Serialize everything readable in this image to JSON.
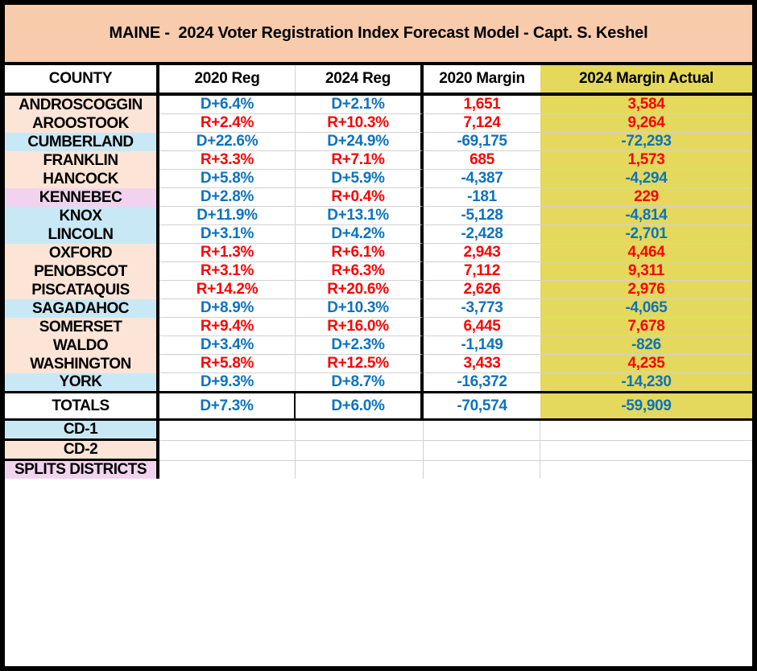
{
  "title": "MAINE -  2024 Voter Registration Index Forecast Model - Capt. S. Keshel",
  "columns": [
    "COUNTY",
    "2020 Reg",
    "2024 Reg",
    "2020 Margin",
    "2024 Margin Actual"
  ],
  "colors": {
    "title_bg": "#F8CBAD",
    "county_peach": "#FCE4D6",
    "county_blue": "#C9E8F5",
    "county_lavender": "#F1D3EF",
    "highlight_yellow": "#E4D95C",
    "dem_text": "#0E72BE",
    "rep_text": "#F90404",
    "gridline": "#D1D1D1"
  },
  "rows": [
    {
      "county": "ANDROSCOGGIN",
      "bg": "peach",
      "values": [
        {
          "t": "D+6.4%",
          "p": "D"
        },
        {
          "t": "D+2.1%",
          "p": "D"
        },
        {
          "t": "1,651",
          "p": "R"
        },
        {
          "t": "3,584",
          "p": "R"
        }
      ]
    },
    {
      "county": "AROOSTOOK",
      "bg": "peach",
      "values": [
        {
          "t": "R+2.4%",
          "p": "R"
        },
        {
          "t": "R+10.3%",
          "p": "R"
        },
        {
          "t": "7,124",
          "p": "R"
        },
        {
          "t": "9,264",
          "p": "R"
        }
      ]
    },
    {
      "county": "CUMBERLAND",
      "bg": "blue",
      "values": [
        {
          "t": "D+22.6%",
          "p": "D"
        },
        {
          "t": "D+24.9%",
          "p": "D"
        },
        {
          "t": "-69,175",
          "p": "D"
        },
        {
          "t": "-72,293",
          "p": "D"
        }
      ]
    },
    {
      "county": "FRANKLIN",
      "bg": "peach",
      "values": [
        {
          "t": "R+3.3%",
          "p": "R"
        },
        {
          "t": "R+7.1%",
          "p": "R"
        },
        {
          "t": "685",
          "p": "R"
        },
        {
          "t": "1,573",
          "p": "R"
        }
      ]
    },
    {
      "county": "HANCOCK",
      "bg": "peach",
      "values": [
        {
          "t": "D+5.8%",
          "p": "D"
        },
        {
          "t": "D+5.9%",
          "p": "D"
        },
        {
          "t": "-4,387",
          "p": "D"
        },
        {
          "t": "-4,294",
          "p": "D"
        }
      ]
    },
    {
      "county": "KENNEBEC",
      "bg": "lavender",
      "values": [
        {
          "t": "D+2.8%",
          "p": "D"
        },
        {
          "t": "R+0.4%",
          "p": "R"
        },
        {
          "t": "-181",
          "p": "D"
        },
        {
          "t": "229",
          "p": "R"
        }
      ]
    },
    {
      "county": "KNOX",
      "bg": "blue",
      "values": [
        {
          "t": "D+11.9%",
          "p": "D"
        },
        {
          "t": "D+13.1%",
          "p": "D"
        },
        {
          "t": "-5,128",
          "p": "D"
        },
        {
          "t": "-4,814",
          "p": "D"
        }
      ]
    },
    {
      "county": "LINCOLN",
      "bg": "blue",
      "values": [
        {
          "t": "D+3.1%",
          "p": "D"
        },
        {
          "t": "D+4.2%",
          "p": "D"
        },
        {
          "t": "-2,428",
          "p": "D"
        },
        {
          "t": "-2,701",
          "p": "D"
        }
      ]
    },
    {
      "county": "OXFORD",
      "bg": "peach",
      "values": [
        {
          "t": "R+1.3%",
          "p": "R"
        },
        {
          "t": "R+6.1%",
          "p": "R"
        },
        {
          "t": "2,943",
          "p": "R"
        },
        {
          "t": "4,464",
          "p": "R"
        }
      ]
    },
    {
      "county": "PENOBSCOT",
      "bg": "peach",
      "values": [
        {
          "t": "R+3.1%",
          "p": "R"
        },
        {
          "t": "R+6.3%",
          "p": "R"
        },
        {
          "t": "7,112",
          "p": "R"
        },
        {
          "t": "9,311",
          "p": "R"
        }
      ]
    },
    {
      "county": "PISCATAQUIS",
      "bg": "peach",
      "values": [
        {
          "t": "R+14.2%",
          "p": "R"
        },
        {
          "t": "R+20.6%",
          "p": "R"
        },
        {
          "t": "2,626",
          "p": "R"
        },
        {
          "t": "2,976",
          "p": "R"
        }
      ]
    },
    {
      "county": "SAGADAHOC",
      "bg": "blue",
      "values": [
        {
          "t": "D+8.9%",
          "p": "D"
        },
        {
          "t": "D+10.3%",
          "p": "D"
        },
        {
          "t": "-3,773",
          "p": "D"
        },
        {
          "t": "-4,065",
          "p": "D"
        }
      ]
    },
    {
      "county": "SOMERSET",
      "bg": "peach",
      "values": [
        {
          "t": "R+9.4%",
          "p": "R"
        },
        {
          "t": "R+16.0%",
          "p": "R"
        },
        {
          "t": "6,445",
          "p": "R"
        },
        {
          "t": "7,678",
          "p": "R"
        }
      ]
    },
    {
      "county": "WALDO",
      "bg": "peach",
      "values": [
        {
          "t": "D+3.4%",
          "p": "D"
        },
        {
          "t": "D+2.3%",
          "p": "D"
        },
        {
          "t": "-1,149",
          "p": "D"
        },
        {
          "t": "-826",
          "p": "D"
        }
      ]
    },
    {
      "county": "WASHINGTON",
      "bg": "peach",
      "values": [
        {
          "t": "R+5.8%",
          "p": "R"
        },
        {
          "t": "R+12.5%",
          "p": "R"
        },
        {
          "t": "3,433",
          "p": "R"
        },
        {
          "t": "4,235",
          "p": "R"
        }
      ]
    },
    {
      "county": "YORK",
      "bg": "blue",
      "values": [
        {
          "t": "D+9.3%",
          "p": "D"
        },
        {
          "t": "D+8.7%",
          "p": "D"
        },
        {
          "t": "-16,372",
          "p": "D"
        },
        {
          "t": "-14,230",
          "p": "D"
        }
      ]
    }
  ],
  "totals_row": {
    "county": "TOTALS",
    "bg": "white",
    "values": [
      {
        "t": "D+7.3%",
        "p": "D"
      },
      {
        "t": "D+6.0%",
        "p": "D"
      },
      {
        "t": "-70,574",
        "p": "D"
      },
      {
        "t": "-59,909",
        "p": "D"
      }
    ]
  },
  "footer_rows": [
    {
      "county": "CD-1",
      "bg": "blue"
    },
    {
      "county": "CD-2",
      "bg": "peach"
    },
    {
      "county": "SPLITS DISTRICTS",
      "bg": "lavender"
    }
  ],
  "chart_data": {
    "type": "table",
    "title": "MAINE -  2024 Voter Registration Index Forecast Model - Capt. S. Keshel",
    "columns": [
      "COUNTY",
      "2020 Reg",
      "2024 Reg",
      "2020 Margin",
      "2024 Margin Actual"
    ],
    "rows": [
      [
        "ANDROSCOGGIN",
        "D+6.4%",
        "D+2.1%",
        "1,651",
        "3,584"
      ],
      [
        "AROOSTOOK",
        "R+2.4%",
        "R+10.3%",
        "7,124",
        "9,264"
      ],
      [
        "CUMBERLAND",
        "D+22.6%",
        "D+24.9%",
        "-69,175",
        "-72,293"
      ],
      [
        "FRANKLIN",
        "R+3.3%",
        "R+7.1%",
        "685",
        "1,573"
      ],
      [
        "HANCOCK",
        "D+5.8%",
        "D+5.9%",
        "-4,387",
        "-4,294"
      ],
      [
        "KENNEBEC",
        "D+2.8%",
        "R+0.4%",
        "-181",
        "229"
      ],
      [
        "KNOX",
        "D+11.9%",
        "D+13.1%",
        "-5,128",
        "-4,814"
      ],
      [
        "LINCOLN",
        "D+3.1%",
        "D+4.2%",
        "-2,428",
        "-2,701"
      ],
      [
        "OXFORD",
        "R+1.3%",
        "R+6.1%",
        "2,943",
        "4,464"
      ],
      [
        "PENOBSCOT",
        "R+3.1%",
        "R+6.3%",
        "7,112",
        "9,311"
      ],
      [
        "PISCATAQUIS",
        "R+14.2%",
        "R+20.6%",
        "2,626",
        "2,976"
      ],
      [
        "SAGADAHOC",
        "D+8.9%",
        "D+10.3%",
        "-3,773",
        "-4,065"
      ],
      [
        "SOMERSET",
        "R+9.4%",
        "R+16.0%",
        "6,445",
        "7,678"
      ],
      [
        "WALDO",
        "D+3.4%",
        "D+2.3%",
        "-1,149",
        "-826"
      ],
      [
        "WASHINGTON",
        "R+5.8%",
        "R+12.5%",
        "3,433",
        "4,235"
      ],
      [
        "YORK",
        "D+9.3%",
        "D+8.7%",
        "-16,372",
        "-14,230"
      ],
      [
        "TOTALS",
        "D+7.3%",
        "D+6.0%",
        "-70,574",
        "-59,909"
      ],
      [
        "CD-1",
        "",
        "",
        "",
        ""
      ],
      [
        "CD-2",
        "",
        "",
        "",
        ""
      ],
      [
        "SPLITS DISTRICTS",
        "",
        "",
        "",
        ""
      ]
    ],
    "notes": "Blue values = Democrat lean, red values = Republican lean; last column highlighted yellow"
  }
}
